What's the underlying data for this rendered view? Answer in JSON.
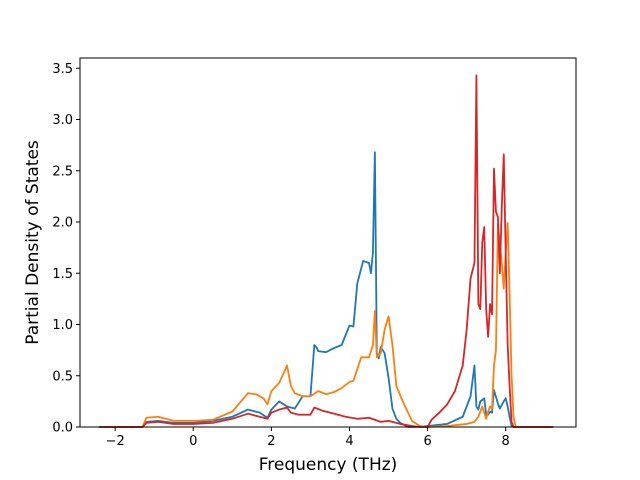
{
  "chart_data": {
    "type": "line",
    "title": "",
    "xlabel": "Frequency (THz)",
    "ylabel": "Partial Density of States",
    "xlim": [
      -2.9,
      9.8
    ],
    "ylim": [
      0,
      3.6
    ],
    "x_ticks": [
      -2,
      0,
      2,
      4,
      6,
      8
    ],
    "x_tick_labels": [
      "−2",
      "0",
      "2",
      "4",
      "6",
      "8"
    ],
    "y_ticks": [
      0,
      0.5,
      1.0,
      1.5,
      2.0,
      2.5,
      3.0,
      3.5
    ],
    "y_tick_labels": [
      "0.0",
      "0.5",
      "1.0",
      "1.5",
      "2.0",
      "2.5",
      "3.0",
      "3.5"
    ],
    "grid": false,
    "legend": "none",
    "series": [
      {
        "color": "#1f77b4",
        "x": [
          -2.4,
          -1.3,
          -1.2,
          -0.9,
          -0.5,
          0,
          0.5,
          1.0,
          1.4,
          1.7,
          1.9,
          2.0,
          2.2,
          2.4,
          2.6,
          2.8,
          3.0,
          3.1,
          3.15,
          3.2,
          3.4,
          3.6,
          3.8,
          4.0,
          4.1,
          4.2,
          4.35,
          4.5,
          4.55,
          4.6,
          4.65,
          4.7,
          4.75,
          4.8,
          4.9,
          5.0,
          5.1,
          5.2,
          5.3,
          5.5,
          5.7,
          6.0,
          6.5,
          6.9,
          7.1,
          7.2,
          7.25,
          7.3,
          7.35,
          7.45,
          7.5,
          7.55,
          7.6,
          7.65,
          7.7,
          7.8,
          7.85,
          7.95,
          8.0,
          8.05,
          8.1,
          8.15,
          8.2,
          8.3,
          9.2
        ],
        "y": [
          0,
          0,
          0.05,
          0.06,
          0.04,
          0.04,
          0.06,
          0.1,
          0.17,
          0.14,
          0.09,
          0.17,
          0.25,
          0.2,
          0.18,
          0.3,
          0.3,
          0.8,
          0.78,
          0.74,
          0.73,
          0.77,
          0.8,
          0.99,
          0.98,
          1.4,
          1.62,
          1.6,
          1.5,
          1.7,
          2.68,
          0.73,
          0.67,
          0.78,
          0.72,
          0.48,
          0.18,
          0.08,
          0.04,
          0,
          0,
          0.01,
          0.03,
          0.1,
          0.3,
          0.6,
          0.2,
          0.17,
          0.25,
          0.28,
          0.12,
          0.12,
          0.15,
          0.14,
          0.36,
          0.23,
          0.18,
          0.25,
          0.28,
          0.2,
          0.1,
          0.01,
          0,
          0,
          0
        ]
      },
      {
        "color": "#ff7f0e",
        "x": [
          -2.4,
          -1.3,
          -1.2,
          -0.9,
          -0.5,
          0,
          0.5,
          1.0,
          1.4,
          1.6,
          1.8,
          1.9,
          2.0,
          2.2,
          2.4,
          2.5,
          2.6,
          2.8,
          3.0,
          3.2,
          3.4,
          3.6,
          3.8,
          4.0,
          4.1,
          4.3,
          4.5,
          4.6,
          4.65,
          4.7,
          4.8,
          4.9,
          5.0,
          5.1,
          5.2,
          5.4,
          5.6,
          5.8,
          6.0,
          6.5,
          7.0,
          7.2,
          7.3,
          7.4,
          7.5,
          7.55,
          7.6,
          7.65,
          7.7,
          7.75,
          7.8,
          7.9,
          7.95,
          8.0,
          8.05,
          8.1,
          8.15,
          8.2,
          8.25,
          8.3,
          9.2
        ],
        "y": [
          0,
          0,
          0.09,
          0.1,
          0.06,
          0.06,
          0.07,
          0.15,
          0.33,
          0.32,
          0.28,
          0.22,
          0.35,
          0.43,
          0.6,
          0.4,
          0.33,
          0.3,
          0.3,
          0.35,
          0.32,
          0.34,
          0.38,
          0.44,
          0.45,
          0.68,
          0.68,
          0.8,
          1.13,
          0.68,
          0.72,
          0.95,
          1.08,
          0.8,
          0.4,
          0.22,
          0.06,
          0.01,
          0,
          0.01,
          0.03,
          0.05,
          0.1,
          0.2,
          0.08,
          0.15,
          0.2,
          0.18,
          0.6,
          0.75,
          1.98,
          1.6,
          1.35,
          1.7,
          1.99,
          1.3,
          0.5,
          0.1,
          0.01,
          0,
          0
        ]
      },
      {
        "color": "#d62728",
        "x": [
          -2.4,
          -1.3,
          -1.2,
          -0.9,
          -0.5,
          0,
          0.5,
          1.0,
          1.4,
          1.7,
          1.9,
          2.0,
          2.2,
          2.4,
          2.5,
          2.7,
          3.0,
          3.1,
          3.3,
          3.6,
          3.9,
          4.2,
          4.5,
          4.8,
          5.0,
          5.3,
          5.6,
          5.8,
          6.0,
          6.1,
          6.3,
          6.5,
          6.7,
          6.9,
          7.0,
          7.1,
          7.2,
          7.25,
          7.3,
          7.35,
          7.4,
          7.45,
          7.5,
          7.55,
          7.6,
          7.65,
          7.7,
          7.75,
          7.8,
          7.85,
          7.9,
          7.95,
          8.0,
          8.05,
          8.1,
          8.15,
          8.2,
          8.25,
          8.3,
          9.2
        ],
        "y": [
          0,
          0,
          0.04,
          0.05,
          0.03,
          0.03,
          0.04,
          0.08,
          0.13,
          0.1,
          0.08,
          0.14,
          0.17,
          0.19,
          0.14,
          0.12,
          0.12,
          0.19,
          0.16,
          0.13,
          0.1,
          0.08,
          0.09,
          0.05,
          0.06,
          0.03,
          0.01,
          0,
          0,
          0.07,
          0.14,
          0.22,
          0.35,
          0.6,
          0.95,
          1.45,
          1.6,
          3.43,
          1.2,
          1.15,
          1.8,
          1.95,
          1.15,
          0.88,
          1.2,
          1.1,
          2.52,
          2.1,
          2.05,
          1.5,
          2.15,
          2.66,
          1.7,
          0.8,
          0.4,
          0.05,
          0,
          0,
          0,
          0
        ]
      }
    ]
  }
}
